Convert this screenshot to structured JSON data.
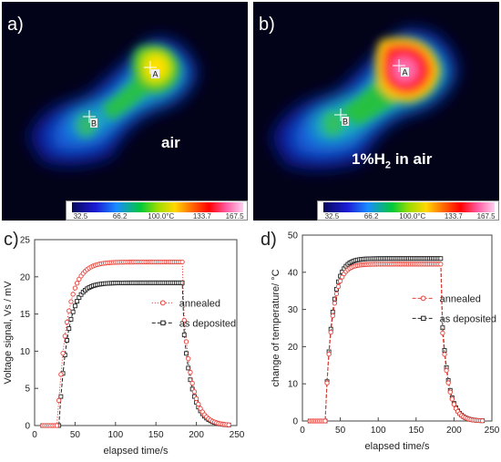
{
  "panel_a": {
    "letter": "a)",
    "label": "air"
  },
  "panel_b": {
    "letter": "b)",
    "label_main": "1%H",
    "label_sub": "2",
    "label_rest": " in air"
  },
  "colorbar": {
    "ticks": [
      "32.5",
      "66.2",
      "100.0°C",
      "133.7",
      "167.5"
    ]
  },
  "markers": {
    "a": "A",
    "b": "B"
  },
  "colors": {
    "annealed": "#e8423a",
    "as_deposited": "#222222"
  },
  "chart_data": [
    {
      "panel": "c)",
      "type": "scatter",
      "xlabel": "elapsed time/s",
      "ylabel": "Voltage signal, Vs / mV",
      "xlim": [
        0,
        250
      ],
      "ylim": [
        0,
        25
      ],
      "xticks": [
        0,
        50,
        100,
        150,
        200,
        250
      ],
      "yticks": [
        0,
        5,
        10,
        15,
        20,
        25
      ],
      "legend": [
        {
          "name": "annealed",
          "style": "dotted",
          "color": "#e8423a"
        },
        {
          "name": "as deposited",
          "style": "dashed",
          "color": "#222222"
        }
      ],
      "legend_position": "center-right",
      "series": [
        {
          "name": "annealed",
          "x0": 10,
          "t_on": 28,
          "t_off": 182,
          "base": 0,
          "level": 22,
          "tau_rise": 12,
          "tau_fall": 11,
          "drop_at_off": 18.6,
          "x_end": 240
        },
        {
          "name": "as deposited",
          "x0": 10,
          "t_on": 30,
          "t_off": 182,
          "base": 0,
          "level": 19.2,
          "tau_rise": 11,
          "tau_fall": 11,
          "drop_at_off": 16,
          "x_end": 240
        }
      ]
    },
    {
      "panel": "d)",
      "type": "scatter",
      "xlabel": "elapsed time/s",
      "ylabel": "change of temperature/ °C",
      "xlim": [
        0,
        250
      ],
      "ylim": [
        0,
        50
      ],
      "xticks": [
        0,
        50,
        100,
        150,
        200,
        250
      ],
      "yticks": [
        0,
        10,
        20,
        30,
        40,
        50
      ],
      "legend": [
        {
          "name": "annealed",
          "style": "dashed",
          "color": "#e8423a"
        },
        {
          "name": "as deposited",
          "style": "dashed",
          "color": "#222222"
        }
      ],
      "legend_position": "center-right",
      "series": [
        {
          "name": "annealed",
          "x0": 10,
          "t_on": 30,
          "t_off": 182,
          "base": 0,
          "level": 42.2,
          "tau_rise": 9,
          "tau_fall": 9,
          "drop_at_off": 33,
          "x_end": 238
        },
        {
          "name": "as deposited",
          "x0": 10,
          "t_on": 30,
          "t_off": 182,
          "base": 0,
          "level": 43.7,
          "tau_rise": 9,
          "tau_fall": 9,
          "drop_at_off": 35,
          "x_end": 238
        }
      ]
    }
  ]
}
